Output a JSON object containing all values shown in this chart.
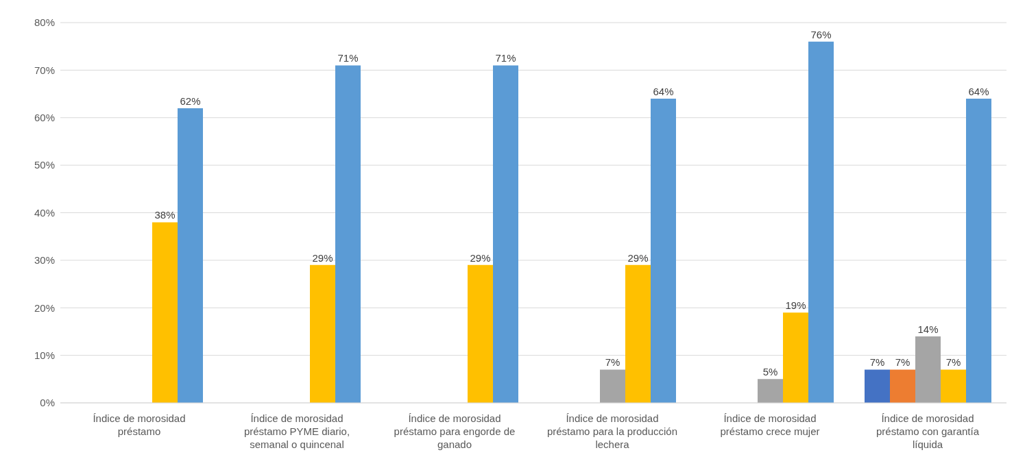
{
  "chart_data": {
    "type": "bar",
    "categories": [
      "Índice de morosidad préstamo",
      "Índice de morosidad préstamo PYME diario, semanal o quincenal",
      "Índice de morosidad préstamo para engorde de ganado",
      "Índice de morosidad préstamo para la producción lechera",
      "Índice de morosidad préstamo crece mujer",
      "Índice de morosidad préstamo con garantía líquida"
    ],
    "series": [
      {
        "color": "#4472c4",
        "values": [
          null,
          null,
          null,
          null,
          null,
          7
        ],
        "value_labels": [
          null,
          null,
          null,
          null,
          null,
          "7%"
        ]
      },
      {
        "color": "#ed7d31",
        "values": [
          null,
          null,
          null,
          null,
          null,
          7
        ],
        "value_labels": [
          null,
          null,
          null,
          null,
          null,
          "7%"
        ]
      },
      {
        "color": "#a5a5a5",
        "values": [
          null,
          null,
          null,
          7,
          5,
          14
        ],
        "value_labels": [
          null,
          null,
          null,
          "7%",
          "5%",
          "14%"
        ]
      },
      {
        "color": "#ffc000",
        "values": [
          38,
          29,
          29,
          29,
          19,
          7
        ],
        "value_labels": [
          "38%",
          "29%",
          "29%",
          "29%",
          "19%",
          "7%"
        ]
      },
      {
        "color": "#5b9bd5",
        "values": [
          62,
          71,
          71,
          64,
          76,
          64
        ],
        "value_labels": [
          "62%",
          "71%",
          "71%",
          "64%",
          "76%",
          "64%"
        ]
      }
    ],
    "ylim": [
      0,
      80
    ],
    "yticks": [
      {
        "value": 0,
        "label": "0%"
      },
      {
        "value": 10,
        "label": "10%"
      },
      {
        "value": 20,
        "label": "20%"
      },
      {
        "value": 30,
        "label": "30%"
      },
      {
        "value": 40,
        "label": "40%"
      },
      {
        "value": 50,
        "label": "50%"
      },
      {
        "value": 60,
        "label": "60%"
      },
      {
        "value": 70,
        "label": "70%"
      },
      {
        "value": 80,
        "label": "80%"
      }
    ],
    "grid": "y",
    "legend": false
  }
}
